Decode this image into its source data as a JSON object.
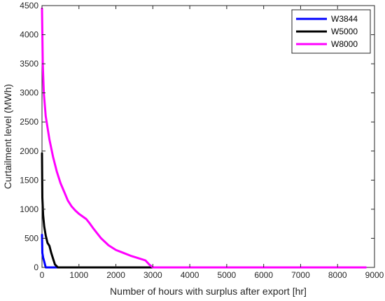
{
  "chart_data": {
    "type": "line",
    "title": "",
    "xlabel": "Number of hours with surplus after export [hr]",
    "ylabel": "Curtailment level (MWh)",
    "xlim": [
      0,
      9000
    ],
    "ylim": [
      0,
      4500
    ],
    "xticks": [
      "0",
      "1000",
      "2000",
      "3000",
      "4000",
      "5000",
      "6000",
      "7000",
      "8000",
      "9000"
    ],
    "yticks": [
      "0",
      "500",
      "1000",
      "1500",
      "2000",
      "2500",
      "3000",
      "3500",
      "4000",
      "4500"
    ],
    "grid": false,
    "legend_position": "top-right",
    "series": [
      {
        "name": "W3844",
        "color": "#0000ff",
        "x": [
          0,
          10,
          30,
          60,
          100,
          8760
        ],
        "y": [
          560,
          250,
          170,
          100,
          0,
          0
        ]
      },
      {
        "name": "W5000",
        "color": "#000000",
        "x": [
          0,
          10,
          30,
          60,
          100,
          150,
          200,
          250,
          300,
          350,
          430,
          500,
          1000,
          3000
        ],
        "y": [
          1960,
          1200,
          900,
          700,
          550,
          420,
          370,
          250,
          150,
          50,
          0,
          0,
          0,
          0
        ]
      },
      {
        "name": "W8000",
        "color": "#ff00ff",
        "x": [
          0,
          20,
          50,
          100,
          200,
          300,
          400,
          500,
          600,
          700,
          800,
          900,
          1000,
          1200,
          1300,
          1400,
          1500,
          1600,
          1800,
          2000,
          2200,
          2400,
          2600,
          2800,
          2900,
          3000,
          4000,
          6000,
          8760
        ],
        "y": [
          4450,
          3500,
          3000,
          2600,
          2200,
          1900,
          1650,
          1450,
          1300,
          1150,
          1050,
          980,
          920,
          830,
          750,
          660,
          580,
          500,
          380,
          300,
          250,
          200,
          160,
          120,
          50,
          0,
          0,
          0,
          0
        ]
      }
    ]
  }
}
